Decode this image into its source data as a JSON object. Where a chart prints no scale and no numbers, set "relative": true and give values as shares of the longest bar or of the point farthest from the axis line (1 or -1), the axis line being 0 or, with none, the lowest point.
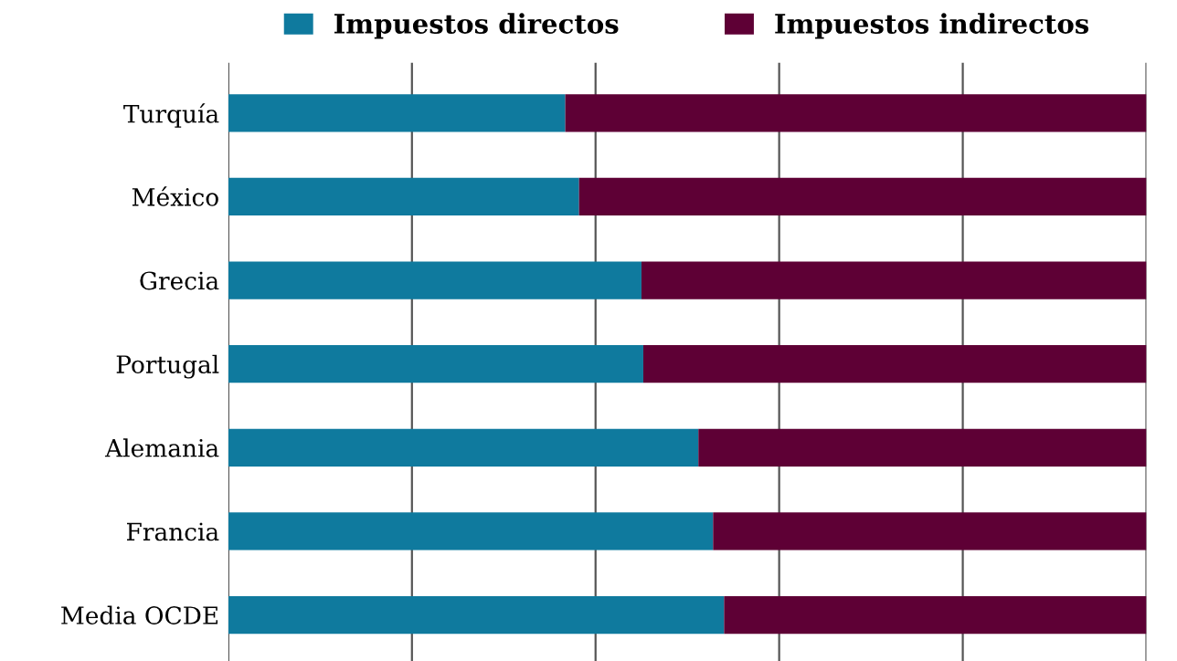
{
  "chart_data": {
    "type": "bar",
    "orientation": "horizontal",
    "stacked": true,
    "relative": true,
    "categories": [
      "Turquía",
      "México",
      "Grecia",
      "Portugal",
      "Alemania",
      "Francia",
      "Media OCDE"
    ],
    "series": [
      {
        "name": "Impuestos directos",
        "color": "#0f7a9e",
        "values": [
          0.367,
          0.382,
          0.45,
          0.452,
          0.512,
          0.528,
          0.54
        ]
      },
      {
        "name": "Impuestos indirectos",
        "color": "#5e0035",
        "values": [
          0.633,
          0.618,
          0.55,
          0.548,
          0.488,
          0.472,
          0.46
        ]
      }
    ],
    "grid": "x",
    "legend": "top"
  }
}
